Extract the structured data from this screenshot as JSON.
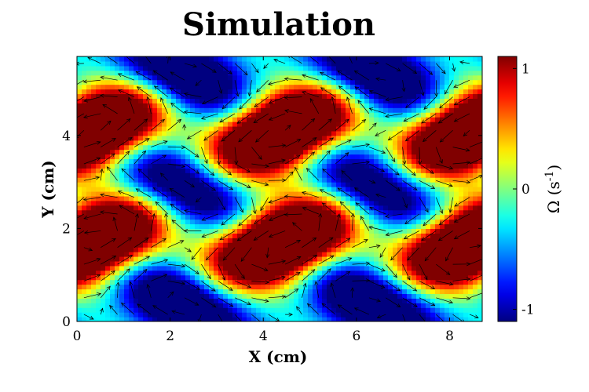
{
  "chart_data": {
    "type": "heatmap",
    "title": "Simulation",
    "xlabel": "X  (cm)",
    "ylabel": "Y  (cm)",
    "colorbar_label": "Ω (s",
    "colorbar_label_sup": "-1",
    "colorbar_label_tail": ")",
    "xlim": [
      0,
      8.7
    ],
    "ylim": [
      0,
      5.7
    ],
    "xticks": [
      "0",
      "2",
      "4",
      "6",
      "8"
    ],
    "xtick_values": [
      0,
      2,
      4,
      6,
      8
    ],
    "yticks": [
      "0",
      "2",
      "4"
    ],
    "ytick_values": [
      0,
      2,
      4
    ],
    "colorbar_ticks": [
      "1",
      "0",
      "-1"
    ],
    "colorbar_tick_values": [
      1,
      0,
      -1
    ],
    "clim": [
      -1.1,
      1.1
    ],
    "colormap": "jet",
    "field": {
      "description_free": true,
      "x_period_cm": 4.1,
      "y_period_cm": 2.4,
      "max_centers": [
        [
          0.3,
          1.7
        ],
        [
          4.4,
          1.7
        ],
        [
          8.5,
          1.7
        ],
        [
          0.3,
          4.1
        ],
        [
          4.4,
          4.1
        ],
        [
          8.5,
          4.1
        ]
      ],
      "min_centers": [
        [
          2.3,
          0.4
        ],
        [
          6.4,
          0.4
        ],
        [
          2.3,
          2.9
        ],
        [
          6.4,
          2.9
        ],
        [
          2.3,
          5.3
        ],
        [
          6.4,
          5.3
        ]
      ],
      "peak_value": 1.0
    },
    "vectors": "velocity arrows overlaid on vorticity field"
  }
}
